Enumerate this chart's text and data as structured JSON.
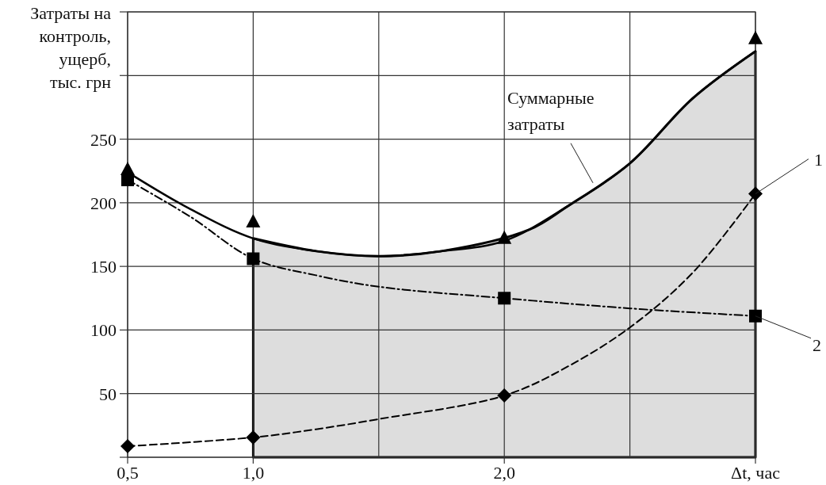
{
  "chart_data": {
    "type": "line",
    "ylabel": "Затраты на контроль, ущерб, тыс. грн",
    "xlabel": "Δt, час",
    "xlim": [
      0.5,
      3
    ],
    "ylim": [
      0,
      350
    ],
    "xticks": [
      {
        "value": 0.5,
        "label": "0,5"
      },
      {
        "value": 1,
        "label": "1,0"
      },
      {
        "value": 1.5,
        "label": null
      },
      {
        "value": 2,
        "label": "2,0"
      },
      {
        "value": 2.5,
        "label": null
      },
      {
        "value": 3,
        "label": null
      }
    ],
    "yticks": [
      {
        "value": 0,
        "label": null
      },
      50,
      100,
      150,
      200,
      250,
      {
        "value": 300,
        "label": null
      },
      {
        "value": 350,
        "label": null
      }
    ],
    "grid": true,
    "legend": false,
    "series": [
      {
        "type": "area",
        "color": "#dddddd",
        "x": [
          1,
          1.25,
          1.5,
          1.75,
          2.1,
          2.25,
          2.5,
          2.75,
          3
        ],
        "values": [
          172,
          162,
          158,
          162,
          179,
          197,
          231,
          282,
          319
        ]
      },
      {
        "name": "Суммарные затраты",
        "color": "#000000",
        "line_style": "solid",
        "marker": "none",
        "x": [
          0.5,
          0.75,
          1,
          1.25,
          1.5,
          1.75,
          2,
          2.25,
          2.5,
          2.75,
          3
        ],
        "values": [
          224,
          195,
          172,
          162,
          158,
          162,
          170,
          197,
          231,
          282,
          319
        ]
      },
      {
        "type": "scatter",
        "color": "#000000",
        "marker": "triangle",
        "x": [
          0.5,
          1,
          2,
          3
        ],
        "values": [
          226,
          185,
          172,
          329
        ]
      },
      {
        "name": "1",
        "color": "#000000",
        "line_style": "dashed",
        "marker": "none",
        "x": [
          0.5,
          1,
          1.25,
          1.5,
          2,
          2.25,
          2.5,
          2.75,
          3
        ],
        "values": [
          8.7,
          15.6,
          22,
          30,
          48.5,
          71,
          102,
          145,
          207
        ]
      },
      {
        "type": "scatter",
        "color": "#000000",
        "marker": "diamond",
        "x": [
          0.5,
          1,
          2,
          3
        ],
        "values": [
          8.7,
          15.6,
          48.5,
          207
        ]
      },
      {
        "name": "2",
        "color": "#000000",
        "line_style": "dashdot",
        "marker": "none",
        "x": [
          0.5,
          0.75,
          1,
          1.25,
          1.5,
          2,
          2.5,
          3
        ],
        "values": [
          218,
          189,
          156,
          143,
          134,
          125,
          117,
          111
        ]
      },
      {
        "type": "scatter",
        "color": "#000000",
        "marker": "square",
        "x": [
          0.5,
          1,
          2,
          3
        ],
        "values": [
          218,
          156,
          125,
          111
        ]
      }
    ]
  }
}
